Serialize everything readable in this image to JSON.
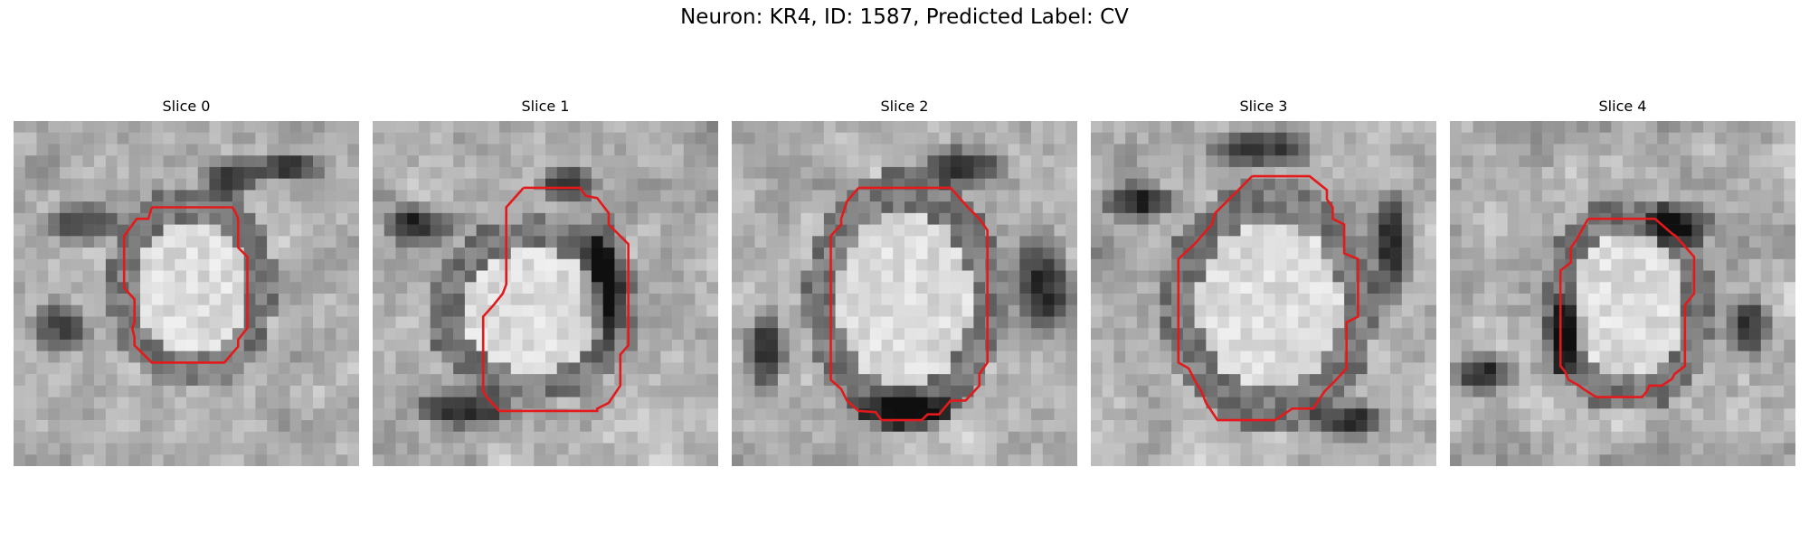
{
  "figure": {
    "title": "Neuron: KR4, ID: 1587, Predicted Label: CV",
    "contour_color": "#e31a1c"
  },
  "slices": [
    {
      "label": "Slice 0"
    },
    {
      "label": "Slice 1"
    },
    {
      "label": "Slice 2"
    },
    {
      "label": "Slice 3"
    },
    {
      "label": "Slice 4"
    }
  ]
}
